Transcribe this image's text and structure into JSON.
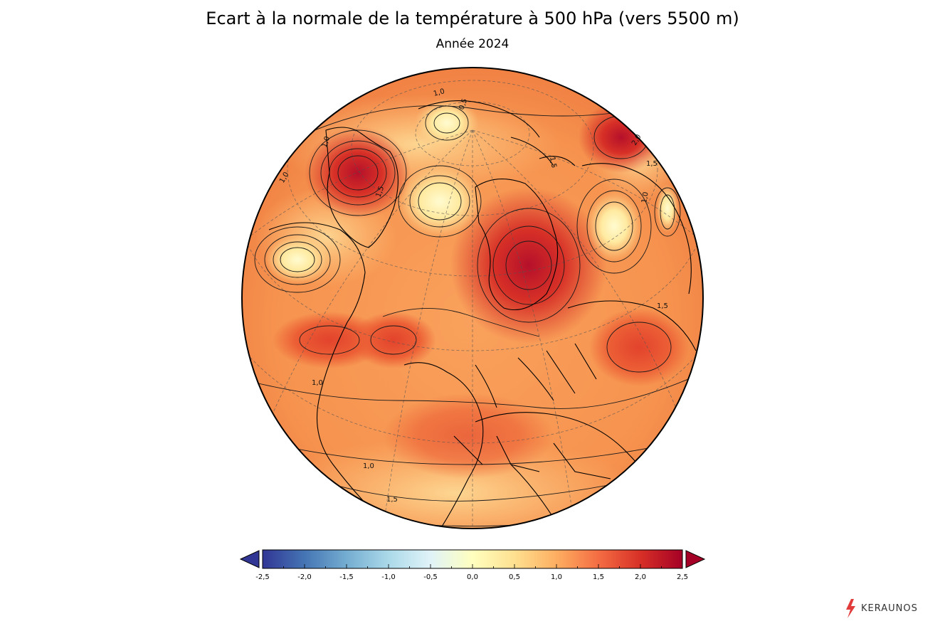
{
  "header": {
    "title": "Ecart à la normale de la température à 500 hPa (vers 5500 m)",
    "subtitle": "Année 2024"
  },
  "map": {
    "contour_labels": [
      "1,0",
      "0,5",
      "1,0",
      "1,5",
      "1,0",
      "1,5",
      "1,0",
      "1,0",
      "1,5",
      "1,0",
      "1,5",
      "2,0",
      "1,5"
    ]
  },
  "colorbar": {
    "min": -2.5,
    "max": 2.5,
    "ticks": [
      "-2,5",
      "-2,0",
      "-1,5",
      "-1,0",
      "-0,5",
      "0,0",
      "0,5",
      "1,0",
      "1,5",
      "2,0",
      "2,5"
    ],
    "colors": [
      "#313695",
      "#4575b4",
      "#74add1",
      "#abd9e9",
      "#e0f3f8",
      "#ffffbf",
      "#fee090",
      "#fdae61",
      "#f46d43",
      "#d73027",
      "#a50026"
    ],
    "extend": "both"
  },
  "brand": {
    "name": "KERAUNOS",
    "accent": "#e23b3b"
  }
}
